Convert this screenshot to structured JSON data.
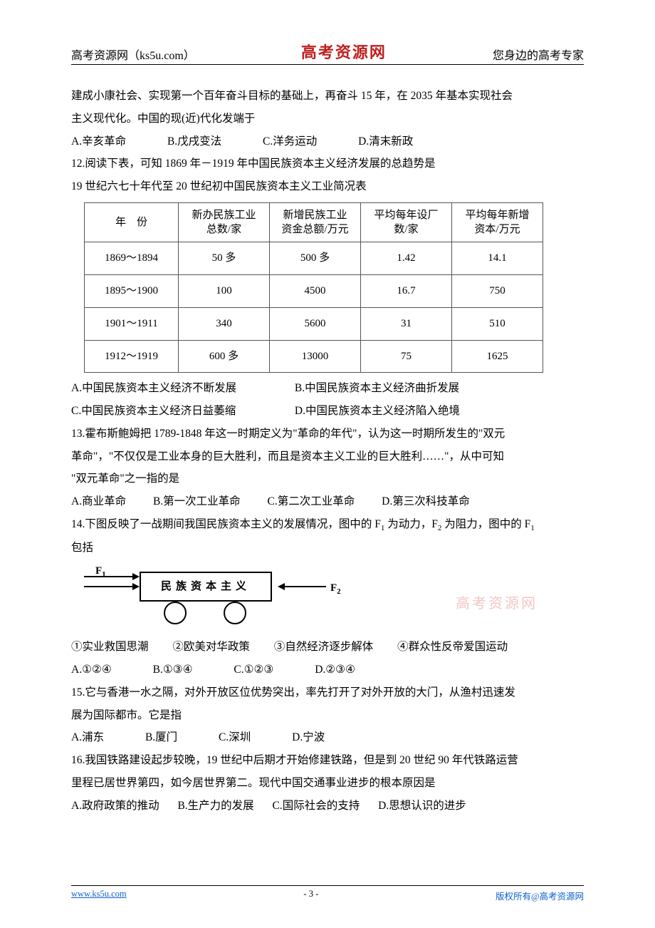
{
  "header": {
    "left": "高考资源网（ks5u.com）",
    "center": "高考资源网",
    "right": "您身边的高考专家"
  },
  "q11_tail": {
    "line1": "建成小康社会、实现第一个百年奋斗目标的基础上，再奋斗 15 年，在 2035 年基本实现社会",
    "line2": "主义现代化。中国的现(近)代化发端于",
    "opts": {
      "A": "A.辛亥革命",
      "B": "B.戊戌变法",
      "C": "C.洋务运动",
      "D": "D.清末新政"
    }
  },
  "q12": {
    "stem": "12.阅读下表，可知 1869 年－1919 年中国民族资本主义经济发展的总趋势是",
    "caption": "19 世纪六七十年代至 20 世纪初中国民族资本主义工业简况表",
    "table": {
      "headers": [
        "年　份",
        "新办民族工业\n总数/家",
        "新增民族工业\n资金总额/万元",
        "平均每年设厂\n数/家",
        "平均每年新增\n资本/万元"
      ],
      "rows": [
        [
          "1869～1894",
          "50 多",
          "500 多",
          "1.42",
          "14.1"
        ],
        [
          "1895～1900",
          "100",
          "4500",
          "16.7",
          "750"
        ],
        [
          "1901～1911",
          "340",
          "5600",
          "31",
          "510"
        ],
        [
          "1912～1919",
          "600 多",
          "13000",
          "75",
          "1625"
        ]
      ]
    },
    "opts": {
      "A": "A.中国民族资本主义经济不断发展",
      "B": "B.中国民族资本主义经济曲折发展",
      "C": "C.中国民族资本主义经济日益萎缩",
      "D": "D.中国民族资本主义经济陷入绝境"
    }
  },
  "q13": {
    "l1": "13.霍布斯鲍姆把 1789-1848 年这一时期定义为\"革命的年代\"，认为这一时期所发生的\"双元",
    "l2": "革命\"，\"不仅仅是工业本身的巨大胜利，而且是资本主义工业的巨大胜利……\"，从中可知",
    "l3": "\"双元革命\"之一指的是",
    "opts": {
      "A": "A.商业革命",
      "B": "B.第一次工业革命",
      "C": "C.第二次工业革命",
      "D": "D.第三次科技革命"
    }
  },
  "q14": {
    "l1_a": "14.下图反映了一战期间我国民族资本主义的发展情况，图中的 F",
    "l1_b": " 为动力，F",
    "l1_c": " 为阻力，图中的 F",
    "l2": "包括",
    "diagram": {
      "box_label": "民族资本主义",
      "f1": "F",
      "f1sub": "1",
      "f2": "F",
      "f2sub": "2"
    },
    "watermark": "高考资源网",
    "items": {
      "i1": "①实业救国思潮",
      "i2": "②欧美对华政策",
      "i3": "③自然经济逐步解体",
      "i4": "④群众性反帝爱国运动"
    },
    "opts": {
      "A": "A.①②④",
      "B": "B.①③④",
      "C": "C.①②③",
      "D": "D.②③④"
    }
  },
  "q15": {
    "l1": "15.它与香港一水之隔，对外开放区位优势突出，率先打开了对外开放的大门，从渔村迅速发",
    "l2": "展为国际都市。它是指",
    "opts": {
      "A": "A.浦东",
      "B": "B.厦门",
      "C": "C.深圳",
      "D": "D.宁波"
    }
  },
  "q16": {
    "l1": "16.我国铁路建设起步较晚，19 世纪中后期才开始修建铁路，但是到 20 世纪 90 年代铁路运营",
    "l2": "里程已居世界第四，如今居世界第二。现代中国交通事业进步的根本原因是",
    "opts": {
      "A": "A.政府政策的推动",
      "B": "B.生产力的发展",
      "C": "C.国际社会的支持",
      "D": "D.思想认识的进步"
    }
  },
  "footer": {
    "left": "www.ks5u.com",
    "center": "- 3 -",
    "right": "版权所有@高考资源网"
  }
}
